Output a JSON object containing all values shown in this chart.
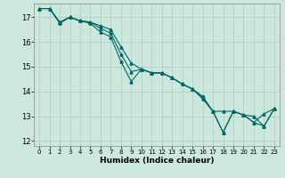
{
  "title": "",
  "xlabel": "Humidex (Indice chaleur)",
  "ylabel": "",
  "background_color": "#cce8dd",
  "grid_color": "#aaccbb",
  "line_color": "#006666",
  "ylim": [
    11.8,
    17.55
  ],
  "xlim": [
    -0.5,
    23.5
  ],
  "yticks": [
    12,
    13,
    14,
    15,
    16,
    17
  ],
  "xticks": [
    0,
    1,
    2,
    3,
    4,
    5,
    6,
    7,
    8,
    9,
    10,
    11,
    12,
    13,
    14,
    15,
    16,
    17,
    18,
    19,
    20,
    21,
    22,
    23
  ],
  "series": [
    {
      "x": [
        0,
        1,
        2,
        3,
        4,
        5,
        6,
        7,
        8,
        9,
        10,
        11,
        12,
        13,
        14,
        15,
        16,
        17,
        18,
        19,
        20,
        21,
        22,
        23
      ],
      "y": [
        17.35,
        17.35,
        16.75,
        17.0,
        16.85,
        16.75,
        16.4,
        16.2,
        15.2,
        14.4,
        14.9,
        14.75,
        14.75,
        14.55,
        14.3,
        14.1,
        13.7,
        13.2,
        12.35,
        13.2,
        13.05,
        13.0,
        12.6,
        13.3
      ]
    },
    {
      "x": [
        0,
        1,
        2,
        3,
        4,
        5,
        6,
        7,
        8,
        9,
        10,
        11,
        12,
        13,
        14,
        15,
        16,
        17,
        18,
        19,
        20,
        21,
        22,
        23
      ],
      "y": [
        17.35,
        17.35,
        16.8,
        17.0,
        16.85,
        16.8,
        16.65,
        16.5,
        15.8,
        15.15,
        14.9,
        14.75,
        14.75,
        14.55,
        14.3,
        14.1,
        13.8,
        13.2,
        13.2,
        13.2,
        13.05,
        12.75,
        13.1,
        13.3
      ]
    },
    {
      "x": [
        0,
        1,
        2,
        3,
        4,
        5,
        6,
        7,
        8,
        9,
        10,
        11,
        12,
        13,
        14,
        15,
        16,
        17,
        18,
        19,
        20,
        21,
        22,
        23
      ],
      "y": [
        17.35,
        17.35,
        16.8,
        17.0,
        16.85,
        16.8,
        16.55,
        16.35,
        15.5,
        14.8,
        14.9,
        14.75,
        14.75,
        14.55,
        14.3,
        14.1,
        13.75,
        13.2,
        12.35,
        13.2,
        13.05,
        12.75,
        12.6,
        13.3
      ]
    }
  ]
}
